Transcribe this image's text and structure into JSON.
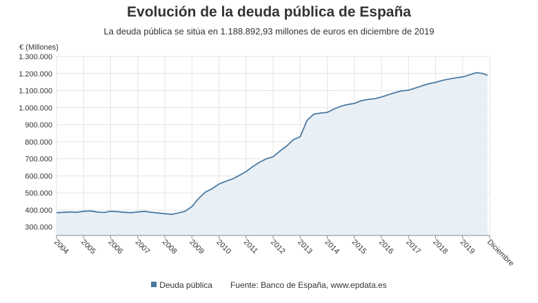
{
  "chart_data": {
    "type": "area",
    "title": "Evolución de la deuda pública de España",
    "subtitle": "La deuda pública se sitúa en 1.188.892,93 millones de euros en diciembre de 2019",
    "ylabel": "€ (Millones)",
    "xlabel": "",
    "ylim": [
      250000,
      1300000
    ],
    "yticks": [
      "300.000",
      "400.000",
      "500.000",
      "600.000",
      "700.000",
      "800.000",
      "900.000",
      "1.000.000",
      "1.100.000",
      "1.200.000",
      "1.300.000"
    ],
    "xticks": [
      "2004",
      "2005",
      "2006",
      "2007",
      "2008",
      "2009",
      "2010",
      "2011",
      "2012",
      "2013",
      "2014",
      "2015",
      "2016",
      "2017",
      "2018",
      "2019",
      "Diciembre"
    ],
    "grid": true,
    "legend": "bottom",
    "series": [
      {
        "name": "Deuda pública",
        "color": "#4a7aa2",
        "fill": "#e8eff5",
        "x": [
          "2004-01",
          "2004-04",
          "2004-07",
          "2004-10",
          "2005-01",
          "2005-04",
          "2005-07",
          "2005-10",
          "2006-01",
          "2006-04",
          "2006-07",
          "2006-10",
          "2007-01",
          "2007-04",
          "2007-07",
          "2007-10",
          "2008-01",
          "2008-04",
          "2008-07",
          "2008-10",
          "2009-01",
          "2009-04",
          "2009-07",
          "2009-10",
          "2010-01",
          "2010-04",
          "2010-07",
          "2010-10",
          "2011-01",
          "2011-04",
          "2011-07",
          "2011-10",
          "2012-01",
          "2012-04",
          "2012-07",
          "2012-10",
          "2013-01",
          "2013-04",
          "2013-07",
          "2013-10",
          "2014-01",
          "2014-04",
          "2014-07",
          "2014-10",
          "2015-01",
          "2015-04",
          "2015-07",
          "2015-10",
          "2016-01",
          "2016-04",
          "2016-07",
          "2016-10",
          "2017-01",
          "2017-04",
          "2017-07",
          "2017-10",
          "2018-01",
          "2018-04",
          "2018-07",
          "2018-10",
          "2019-01",
          "2019-04",
          "2019-07",
          "2019-10",
          "2019-12"
        ],
        "values": [
          384000,
          386000,
          388000,
          386000,
          392000,
          394000,
          388000,
          385000,
          392000,
          390000,
          386000,
          384000,
          388000,
          392000,
          386000,
          382000,
          378000,
          374000,
          382000,
          392000,
          420000,
          468000,
          505000,
          525000,
          552000,
          568000,
          582000,
          602000,
          625000,
          655000,
          680000,
          700000,
          712000,
          745000,
          775000,
          812000,
          830000,
          925000,
          962000,
          968000,
          972000,
          992000,
          1008000,
          1018000,
          1025000,
          1040000,
          1048000,
          1052000,
          1062000,
          1075000,
          1088000,
          1098000,
          1102000,
          1115000,
          1128000,
          1140000,
          1148000,
          1160000,
          1168000,
          1175000,
          1180000,
          1192000,
          1205000,
          1200000,
          1188893
        ]
      }
    ],
    "source": "Fuente: Banco de España, www.epdata.es"
  }
}
